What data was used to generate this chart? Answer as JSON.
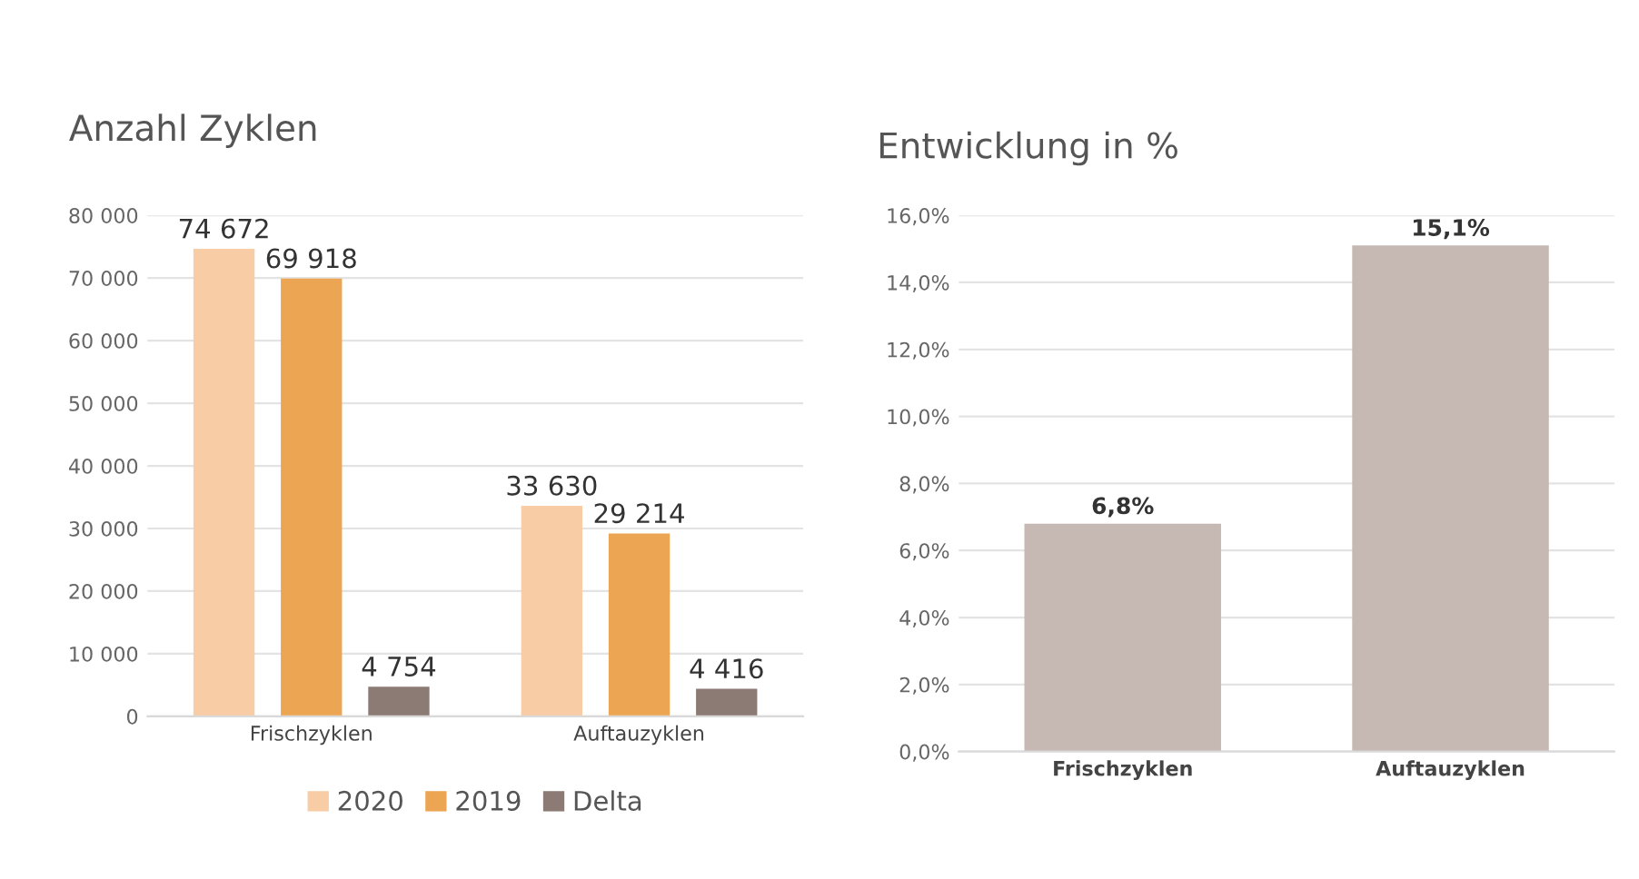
{
  "chart_data": [
    {
      "type": "bar",
      "title": "Anzahl Zyklen",
      "categories": [
        "Frischzyklen",
        "Auftauzyklen"
      ],
      "series": [
        {
          "name": "2020",
          "color": "#f8cca4",
          "values": [
            74672,
            33630
          ],
          "value_labels": [
            "74 672",
            "33 630"
          ]
        },
        {
          "name": "2019",
          "color": "#eca552",
          "values": [
            69918,
            29214
          ],
          "value_labels": [
            "69 918",
            "29 214"
          ]
        },
        {
          "name": "Delta",
          "color": "#8c7b74",
          "values": [
            4754,
            4416
          ],
          "value_labels": [
            "4 754",
            "4 416"
          ]
        }
      ],
      "ylim": [
        0,
        80000
      ],
      "yticks": [
        0,
        {
          "value": 10000,
          "label": "10 000"
        },
        {
          "value": 20000,
          "label": "20 000"
        },
        {
          "value": 30000,
          "label": "30 000"
        },
        {
          "value": 40000,
          "label": "40 000"
        },
        {
          "value": 50000,
          "label": "50 000"
        },
        {
          "value": 60000,
          "label": "60 000"
        },
        {
          "value": 70000,
          "label": "70 000"
        },
        {
          "value": 80000,
          "label": "80 000"
        }
      ],
      "grid": "y",
      "legend": "bottom"
    },
    {
      "type": "bar",
      "title": "Entwicklung in %",
      "categories": [
        "Frischzyklen",
        "Auftauzyklen"
      ],
      "series": [
        {
          "color": "#c6b9b4",
          "values": [
            6.8,
            15.1
          ],
          "value_labels": [
            "6,8%",
            "15,1%"
          ]
        }
      ],
      "ylim": [
        0,
        16
      ],
      "yticks": [
        {
          "value": 0,
          "label": "0,0%"
        },
        {
          "value": 2,
          "label": "2,0%"
        },
        {
          "value": 4,
          "label": "4,0%"
        },
        {
          "value": 6,
          "label": "6,0%"
        },
        {
          "value": 8,
          "label": "8,0%"
        },
        {
          "value": 10,
          "label": "10,0%"
        },
        {
          "value": 12,
          "label": "12,0%"
        },
        {
          "value": 14,
          "label": "14,0%"
        },
        {
          "value": 16,
          "label": "16,0%"
        }
      ],
      "grid": "y",
      "legend": false
    }
  ]
}
